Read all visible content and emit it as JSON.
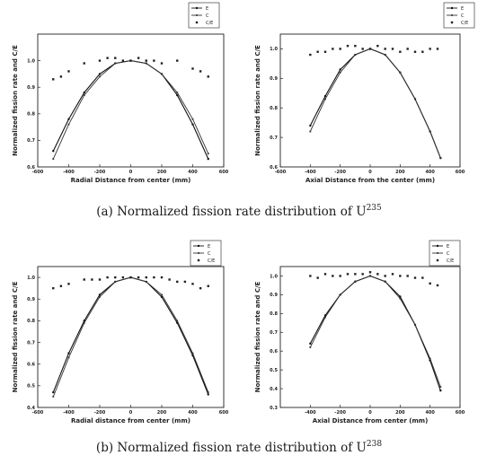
{
  "captions": [
    {
      "text": "(a) Normalized fission rate distribution of U",
      "sup": "235"
    },
    {
      "text": "(b) Normalized fission rate distribution of U",
      "sup": "238"
    }
  ],
  "legend_labels": [
    "E",
    "C",
    "C/E"
  ],
  "colors": {
    "E": "#111111",
    "C": "#333333",
    "CE": "#222222",
    "axis": "#222222"
  },
  "chart_data": [
    {
      "type": "line",
      "panel": "a-left",
      "xlabel": "Radial Distance from center (mm)",
      "ylabel": "Normalized fission rate and C/E",
      "xlim": [
        -600,
        600
      ],
      "ylim": [
        0.6,
        1.1
      ],
      "xticks": [
        -600,
        -400,
        -200,
        0,
        200,
        400,
        600
      ],
      "xtick_labels": [
        "-600",
        "-400",
        "-200",
        "0",
        "200",
        "400",
        "600"
      ],
      "yticks": [
        0.6,
        0.7,
        0.8,
        0.9,
        1.0
      ],
      "ytick_labels": [
        "0.6",
        "0.7",
        "0.8",
        "0.9",
        "1.0"
      ],
      "legend_position": "top-right-outside",
      "series": [
        {
          "name": "E",
          "x": [
            -500,
            -400,
            -300,
            -200,
            -100,
            0,
            100,
            200,
            300,
            400,
            500
          ],
          "y": [
            0.66,
            0.78,
            0.88,
            0.95,
            0.99,
            1.0,
            0.99,
            0.95,
            0.87,
            0.76,
            0.63
          ]
        },
        {
          "name": "C",
          "x": [
            -500,
            -400,
            -300,
            -200,
            -100,
            0,
            100,
            200,
            300,
            400,
            500
          ],
          "y": [
            0.63,
            0.76,
            0.87,
            0.94,
            0.99,
            1.0,
            0.99,
            0.95,
            0.88,
            0.78,
            0.65
          ]
        },
        {
          "name": "C/E",
          "x": [
            -500,
            -450,
            -400,
            -300,
            -200,
            -150,
            -100,
            -50,
            0,
            50,
            100,
            150,
            200,
            300,
            400,
            450,
            500
          ],
          "y": [
            0.93,
            0.94,
            0.96,
            0.99,
            1.0,
            1.01,
            1.01,
            1.0,
            1.0,
            1.01,
            1.0,
            1.0,
            0.99,
            1.0,
            0.97,
            0.96,
            0.94
          ]
        }
      ]
    },
    {
      "type": "line",
      "panel": "a-right",
      "xlabel": "Axial Distance from the center (mm)",
      "ylabel": "Normalized fission rate and C/E",
      "xlim": [
        -600,
        600
      ],
      "ylim": [
        0.6,
        1.05
      ],
      "xticks": [
        -600,
        -400,
        -200,
        0,
        200,
        400,
        600
      ],
      "xtick_labels": [
        "-600",
        "-400",
        "-200",
        "0",
        "200",
        "400",
        "600"
      ],
      "yticks": [
        0.6,
        0.7,
        0.8,
        0.9,
        1.0
      ],
      "ytick_labels": [
        "0.6",
        "0.7",
        "0.8",
        "0.9",
        "1.0"
      ],
      "legend_position": "top-right-outside",
      "series": [
        {
          "name": "E",
          "x": [
            -400,
            -300,
            -200,
            -100,
            0,
            100,
            200,
            300,
            400,
            470
          ],
          "y": [
            0.74,
            0.84,
            0.93,
            0.98,
            1.0,
            0.98,
            0.92,
            0.83,
            0.72,
            0.63
          ]
        },
        {
          "name": "C",
          "x": [
            -400,
            -300,
            -200,
            -100,
            0,
            100,
            200,
            300,
            400,
            470
          ],
          "y": [
            0.72,
            0.83,
            0.92,
            0.98,
            1.0,
            0.98,
            0.92,
            0.83,
            0.72,
            0.63
          ]
        },
        {
          "name": "C/E",
          "x": [
            -400,
            -350,
            -300,
            -250,
            -200,
            -150,
            -100,
            -50,
            0,
            50,
            100,
            150,
            200,
            250,
            300,
            350,
            400,
            450
          ],
          "y": [
            0.98,
            0.99,
            0.99,
            1.0,
            1.0,
            1.01,
            1.01,
            1.0,
            1.0,
            1.01,
            1.0,
            1.0,
            0.99,
            1.0,
            0.99,
            0.99,
            1.0,
            1.0
          ]
        }
      ]
    },
    {
      "type": "line",
      "panel": "b-left",
      "xlabel": "Radial distance from center (mm)",
      "ylabel": "Normalized fission rate and C/E",
      "xlim": [
        -600,
        600
      ],
      "ylim": [
        0.4,
        1.05
      ],
      "xticks": [
        -600,
        -400,
        -200,
        0,
        200,
        400,
        600
      ],
      "xtick_labels": [
        "-600",
        "-400",
        "-200",
        "0",
        "200",
        "400",
        "600"
      ],
      "yticks": [
        0.4,
        0.5,
        0.6,
        0.7,
        0.8,
        0.9,
        1.0
      ],
      "ytick_labels": [
        "0.4",
        "0.5",
        "0.6",
        "0.7",
        "0.8",
        "0.9",
        "1.0"
      ],
      "legend_position": "top-right-outside",
      "series": [
        {
          "name": "E",
          "x": [
            -500,
            -400,
            -300,
            -200,
            -100,
            0,
            100,
            200,
            300,
            400,
            500
          ],
          "y": [
            0.47,
            0.65,
            0.8,
            0.92,
            0.98,
            1.0,
            0.98,
            0.91,
            0.79,
            0.64,
            0.46
          ]
        },
        {
          "name": "C",
          "x": [
            -500,
            -400,
            -300,
            -200,
            -100,
            0,
            100,
            200,
            300,
            400,
            500
          ],
          "y": [
            0.45,
            0.63,
            0.79,
            0.91,
            0.98,
            1.0,
            0.98,
            0.92,
            0.8,
            0.65,
            0.47
          ]
        },
        {
          "name": "C/E",
          "x": [
            -500,
            -450,
            -400,
            -300,
            -250,
            -200,
            -150,
            -100,
            -50,
            0,
            50,
            100,
            150,
            200,
            250,
            300,
            350,
            400,
            450,
            500
          ],
          "y": [
            0.95,
            0.96,
            0.97,
            0.99,
            0.99,
            0.99,
            1.0,
            1.0,
            1.0,
            1.0,
            1.0,
            1.0,
            1.0,
            1.0,
            0.99,
            0.98,
            0.98,
            0.97,
            0.95,
            0.96
          ]
        }
      ]
    },
    {
      "type": "line",
      "panel": "b-right",
      "xlabel": "Axial Distance from center (mm)",
      "ylabel": "Normalized fission rate and C/E",
      "xlim": [
        -600,
        600
      ],
      "ylim": [
        0.3,
        1.05
      ],
      "xticks": [
        -400,
        -200,
        0,
        200,
        400,
        600
      ],
      "xtick_labels": [
        "-400",
        "-200",
        "0",
        "200",
        "400",
        "600"
      ],
      "yticks": [
        0.3,
        0.4,
        0.5,
        0.6,
        0.7,
        0.8,
        0.9,
        1.0
      ],
      "ytick_labels": [
        "0.3",
        "0.4",
        "0.5",
        "0.6",
        "0.7",
        "0.8",
        "0.9",
        "1.0"
      ],
      "legend_position": "top-right-outside",
      "series": [
        {
          "name": "E",
          "x": [
            -400,
            -300,
            -200,
            -100,
            0,
            100,
            200,
            300,
            400,
            470
          ],
          "y": [
            0.64,
            0.79,
            0.9,
            0.97,
            1.0,
            0.97,
            0.89,
            0.74,
            0.55,
            0.39
          ]
        },
        {
          "name": "C",
          "x": [
            -400,
            -300,
            -200,
            -100,
            0,
            100,
            200,
            300,
            400,
            470
          ],
          "y": [
            0.62,
            0.78,
            0.9,
            0.97,
            1.0,
            0.97,
            0.88,
            0.74,
            0.56,
            0.41
          ]
        },
        {
          "name": "C/E",
          "x": [
            -400,
            -350,
            -300,
            -250,
            -200,
            -150,
            -100,
            -50,
            0,
            50,
            100,
            150,
            200,
            250,
            300,
            350,
            400,
            450
          ],
          "y": [
            1.0,
            0.99,
            1.01,
            1.0,
            1.0,
            1.01,
            1.01,
            1.01,
            1.02,
            1.01,
            1.0,
            1.01,
            1.0,
            1.0,
            0.99,
            0.99,
            0.96,
            0.95
          ]
        }
      ]
    }
  ]
}
